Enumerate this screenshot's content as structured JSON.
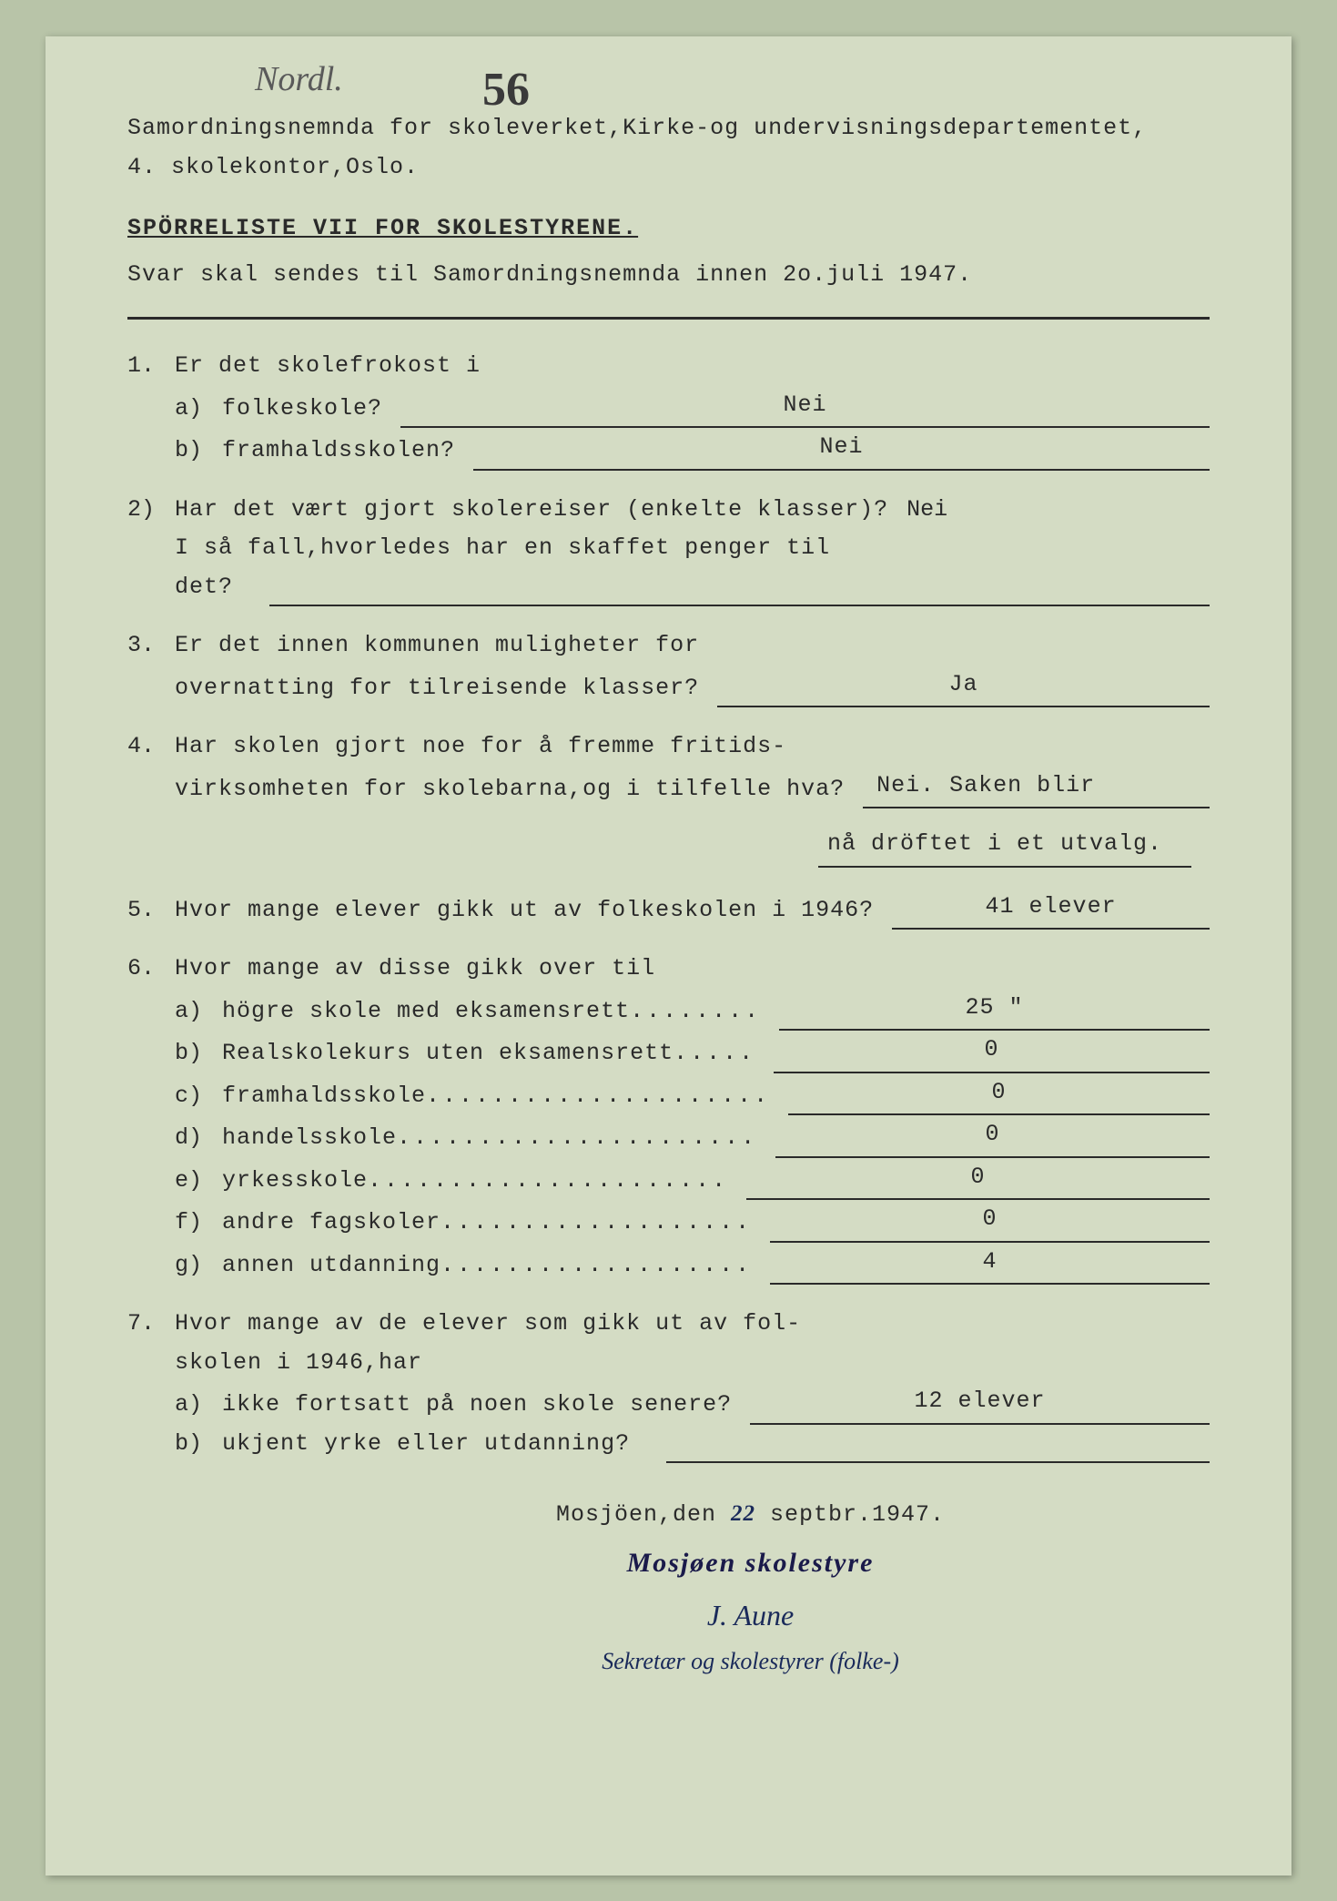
{
  "handwritten": {
    "topLeft": "Nordl.",
    "topCenter": "56"
  },
  "header": {
    "line1": "Samordningsnemnda for skoleverket,Kirke-og undervisningsdepartementet,",
    "line2": "4.  skolekontor,Oslo."
  },
  "title": "SPÖRRELISTE  VII FOR SKOLESTYRENE.",
  "subtitle": "Svar skal sendes til Samordningsnemnda innen 2o.juli 1947.",
  "q1": {
    "num": "1.",
    "text": "Er det skolefrokost i",
    "a_sub": "a)",
    "a_text": "folkeskole?",
    "a_answer": "Nei",
    "b_sub": "b)",
    "b_text": "framhaldsskolen?",
    "b_answer": "Nei"
  },
  "q2": {
    "num": "2)",
    "text1": "Har det vært gjort skolereiser (enkelte klasser)?",
    "inline_answer": "Nei",
    "text2": "I så fall,hvorledes har en skaffet penger til",
    "text3": "det?"
  },
  "q3": {
    "num": "3.",
    "text1": "Er det innen kommunen muligheter for",
    "text2": "overnatting for tilreisende klasser?",
    "answer": "Ja"
  },
  "q4": {
    "num": "4.",
    "text1": "Har skolen gjort noe for å fremme fritids-",
    "text2": "virksomheten for skolebarna,og i tilfelle hva?",
    "answer1": "Nei. Saken blir",
    "answer2": "nå dröftet i et utvalg."
  },
  "q5": {
    "num": "5.",
    "text": "Hvor mange elever gikk ut av folkeskolen i 1946?",
    "answer": "41 elever"
  },
  "q6": {
    "num": "6.",
    "text": "Hvor mange av disse gikk over til",
    "items": [
      {
        "sub": "a)",
        "label": "högre skole med eksamensrett",
        "dots": "........",
        "answer": "25    \""
      },
      {
        "sub": "b)",
        "label": "Realskolekurs uten eksamensrett",
        "dots": ".....",
        "answer": "0"
      },
      {
        "sub": "c)",
        "label": "framhaldsskole",
        "dots": ".....................",
        "answer": "0"
      },
      {
        "sub": "d)",
        "label": "handelsskole",
        "dots": " ......................",
        "answer": "0"
      },
      {
        "sub": "e)",
        "label": "yrkesskole",
        "dots": "   ......................",
        "answer": "0"
      },
      {
        "sub": "f)",
        "label": "andre fagskoler",
        "dots": " ...................",
        "answer": "0"
      },
      {
        "sub": "g)",
        "label": "annen utdanning",
        "dots": " ...................",
        "answer": "4"
      }
    ]
  },
  "q7": {
    "num": "7.",
    "text1": "Hvor mange av de elever som gikk ut av fol-",
    "text2": "skolen i 1946,har",
    "a_sub": "a)",
    "a_text": "ikke fortsatt på noen skole senere?",
    "a_answer": "12 elever",
    "b_sub": "b)",
    "b_text": "ukjent yrke eller utdanning?"
  },
  "signature": {
    "date_prefix": "Mosjöen,den ",
    "date_day": "22",
    "date_suffix": " septbr.1947.",
    "org": "Mosjøen  skolestyre",
    "name": "J. Aune",
    "title": "Sekretær og skolestyrer (folke-)"
  },
  "colors": {
    "page_bg": "#d4dcc4",
    "outer_bg": "#b8c4a8",
    "text": "#2a2a2a",
    "ink_blue": "#1a2a5a"
  },
  "typography": {
    "body_fontsize": 25,
    "handwritten_fontsize": 38,
    "title_underline": true,
    "font_family": "Courier New"
  }
}
